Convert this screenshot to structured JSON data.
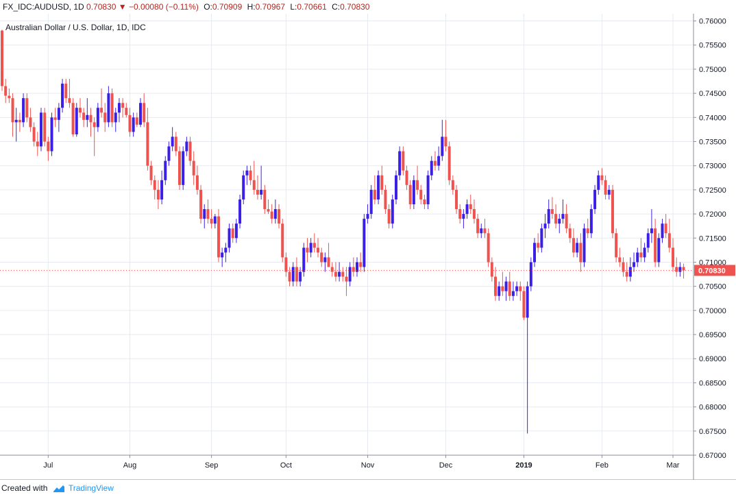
{
  "header": {
    "symbol": "FX_IDC:AUDUSD, 1D",
    "last": "0.70830",
    "change_arrow": "▼",
    "change": "−0.00080 (−0.11%)",
    "o_label": "O:",
    "o_value": "0.70909",
    "h_label": "H:",
    "h_value": "0.70967",
    "l_label": "L:",
    "l_value": "0.70661",
    "c_label": "C:",
    "c_value": "0.70830"
  },
  "footer": {
    "created_with": "Created with",
    "brand": "TradingView"
  },
  "colors": {
    "up": "#3a1fe6",
    "down": "#ef5350",
    "grid": "#e6eaf0",
    "axis": "#8a8e99",
    "price_label_bg": "#ef5350"
  },
  "chart_data": {
    "type": "candlestick",
    "title": "Australian Dollar / U.S. Dollar, 1D, IDC",
    "ylim": [
      0.67,
      0.7615
    ],
    "y_ticks": [
      "0.76000",
      "0.75500",
      "0.75000",
      "0.74500",
      "0.74000",
      "0.73500",
      "0.73000",
      "0.72500",
      "0.72000",
      "0.71500",
      "0.71000",
      "0.70500",
      "0.70000",
      "0.69500",
      "0.69000",
      "0.68500",
      "0.68000",
      "0.67500",
      "0.67000"
    ],
    "x_tick_labels": [
      {
        "label": "Jul",
        "bar": 13
      },
      {
        "label": "Aug",
        "bar": 36
      },
      {
        "label": "Sep",
        "bar": 59
      },
      {
        "label": "Oct",
        "bar": 80
      },
      {
        "label": "Nov",
        "bar": 103
      },
      {
        "label": "Dec",
        "bar": 125
      },
      {
        "label": "2019",
        "bar": 147
      },
      {
        "label": "Feb",
        "bar": 169
      },
      {
        "label": "Mar",
        "bar": 189
      }
    ],
    "last_price": "0.70830",
    "grid": true,
    "candles": [
      [
        0.758,
        0.7582,
        0.7455,
        0.7465
      ],
      [
        0.7465,
        0.748,
        0.743,
        0.7445
      ],
      [
        0.7445,
        0.746,
        0.743,
        0.744
      ],
      [
        0.744,
        0.745,
        0.736,
        0.739
      ],
      [
        0.739,
        0.742,
        0.735,
        0.7395
      ],
      [
        0.7395,
        0.741,
        0.737,
        0.739
      ],
      [
        0.739,
        0.745,
        0.738,
        0.744
      ],
      [
        0.744,
        0.745,
        0.739,
        0.74
      ],
      [
        0.74,
        0.742,
        0.737,
        0.738
      ],
      [
        0.738,
        0.739,
        0.734,
        0.735
      ],
      [
        0.735,
        0.737,
        0.732,
        0.734
      ],
      [
        0.734,
        0.742,
        0.733,
        0.741
      ],
      [
        0.741,
        0.742,
        0.734,
        0.735
      ],
      [
        0.735,
        0.736,
        0.731,
        0.733
      ],
      [
        0.733,
        0.741,
        0.732,
        0.74
      ],
      [
        0.74,
        0.742,
        0.738,
        0.7395
      ],
      [
        0.7395,
        0.743,
        0.737,
        0.742
      ],
      [
        0.742,
        0.748,
        0.741,
        0.747
      ],
      [
        0.747,
        0.748,
        0.743,
        0.744
      ],
      [
        0.744,
        0.748,
        0.742,
        0.743
      ],
      [
        0.743,
        0.744,
        0.736,
        0.7365
      ],
      [
        0.7365,
        0.743,
        0.736,
        0.742
      ],
      [
        0.742,
        0.744,
        0.74,
        0.741
      ],
      [
        0.741,
        0.742,
        0.738,
        0.7395
      ],
      [
        0.7395,
        0.744,
        0.738,
        0.7405
      ],
      [
        0.7405,
        0.742,
        0.736,
        0.739
      ],
      [
        0.739,
        0.74,
        0.732,
        0.738
      ],
      [
        0.738,
        0.743,
        0.737,
        0.742
      ],
      [
        0.742,
        0.746,
        0.74,
        0.741
      ],
      [
        0.741,
        0.743,
        0.737,
        0.739
      ],
      [
        0.739,
        0.7465,
        0.738,
        0.745
      ],
      [
        0.745,
        0.746,
        0.738,
        0.739
      ],
      [
        0.739,
        0.742,
        0.737,
        0.741
      ],
      [
        0.741,
        0.744,
        0.739,
        0.743
      ],
      [
        0.743,
        0.744,
        0.74,
        0.742
      ],
      [
        0.742,
        0.743,
        0.74,
        0.7405
      ],
      [
        0.7405,
        0.742,
        0.736,
        0.737
      ],
      [
        0.737,
        0.741,
        0.736,
        0.74
      ],
      [
        0.74,
        0.741,
        0.738,
        0.7385
      ],
      [
        0.7385,
        0.744,
        0.738,
        0.743
      ],
      [
        0.743,
        0.745,
        0.738,
        0.739
      ],
      [
        0.739,
        0.742,
        0.729,
        0.73
      ],
      [
        0.73,
        0.731,
        0.726,
        0.727
      ],
      [
        0.727,
        0.728,
        0.723,
        0.725
      ],
      [
        0.725,
        0.727,
        0.721,
        0.723
      ],
      [
        0.723,
        0.729,
        0.722,
        0.727
      ],
      [
        0.727,
        0.732,
        0.726,
        0.731
      ],
      [
        0.731,
        0.735,
        0.73,
        0.734
      ],
      [
        0.734,
        0.738,
        0.733,
        0.736
      ],
      [
        0.736,
        0.737,
        0.732,
        0.733
      ],
      [
        0.733,
        0.734,
        0.725,
        0.726
      ],
      [
        0.726,
        0.734,
        0.725,
        0.733
      ],
      [
        0.733,
        0.736,
        0.732,
        0.735
      ],
      [
        0.735,
        0.736,
        0.73,
        0.731
      ],
      [
        0.731,
        0.733,
        0.726,
        0.728
      ],
      [
        0.728,
        0.73,
        0.724,
        0.725
      ],
      [
        0.725,
        0.726,
        0.718,
        0.719
      ],
      [
        0.719,
        0.722,
        0.717,
        0.721
      ],
      [
        0.721,
        0.723,
        0.718,
        0.719
      ],
      [
        0.719,
        0.721,
        0.717,
        0.718
      ],
      [
        0.718,
        0.72,
        0.717,
        0.7195
      ],
      [
        0.7195,
        0.721,
        0.71,
        0.711
      ],
      [
        0.711,
        0.713,
        0.709,
        0.712
      ],
      [
        0.712,
        0.714,
        0.71,
        0.713
      ],
      [
        0.713,
        0.718,
        0.712,
        0.717
      ],
      [
        0.717,
        0.718,
        0.714,
        0.715
      ],
      [
        0.715,
        0.719,
        0.714,
        0.718
      ],
      [
        0.718,
        0.724,
        0.717,
        0.723
      ],
      [
        0.723,
        0.729,
        0.722,
        0.728
      ],
      [
        0.728,
        0.73,
        0.726,
        0.729
      ],
      [
        0.729,
        0.73,
        0.726,
        0.727
      ],
      [
        0.727,
        0.731,
        0.724,
        0.725
      ],
      [
        0.725,
        0.728,
        0.723,
        0.724
      ],
      [
        0.724,
        0.73,
        0.723,
        0.725
      ],
      [
        0.725,
        0.726,
        0.72,
        0.721
      ],
      [
        0.721,
        0.723,
        0.72,
        0.7205
      ],
      [
        0.7205,
        0.722,
        0.718,
        0.719
      ],
      [
        0.719,
        0.723,
        0.718,
        0.721
      ],
      [
        0.721,
        0.722,
        0.717,
        0.718
      ],
      [
        0.718,
        0.719,
        0.71,
        0.711
      ],
      [
        0.711,
        0.712,
        0.707,
        0.708
      ],
      [
        0.708,
        0.709,
        0.705,
        0.706
      ],
      [
        0.706,
        0.71,
        0.705,
        0.709
      ],
      [
        0.709,
        0.711,
        0.705,
        0.706
      ],
      [
        0.706,
        0.709,
        0.705,
        0.708
      ],
      [
        0.708,
        0.714,
        0.707,
        0.713
      ],
      [
        0.713,
        0.715,
        0.71,
        0.712
      ],
      [
        0.712,
        0.715,
        0.711,
        0.714
      ],
      [
        0.714,
        0.716,
        0.712,
        0.713
      ],
      [
        0.713,
        0.715,
        0.711,
        0.712
      ],
      [
        0.712,
        0.713,
        0.709,
        0.71
      ],
      [
        0.71,
        0.712,
        0.708,
        0.711
      ],
      [
        0.711,
        0.714,
        0.709,
        0.709
      ],
      [
        0.709,
        0.71,
        0.707,
        0.708
      ],
      [
        0.708,
        0.71,
        0.706,
        0.707
      ],
      [
        0.707,
        0.71,
        0.706,
        0.708
      ],
      [
        0.708,
        0.709,
        0.706,
        0.707
      ],
      [
        0.707,
        0.709,
        0.703,
        0.706
      ],
      [
        0.706,
        0.71,
        0.705,
        0.709
      ],
      [
        0.709,
        0.711,
        0.707,
        0.708
      ],
      [
        0.708,
        0.711,
        0.707,
        0.71
      ],
      [
        0.71,
        0.712,
        0.708,
        0.709
      ],
      [
        0.709,
        0.72,
        0.708,
        0.719
      ],
      [
        0.719,
        0.722,
        0.718,
        0.72
      ],
      [
        0.72,
        0.726,
        0.719,
        0.725
      ],
      [
        0.725,
        0.728,
        0.722,
        0.723
      ],
      [
        0.723,
        0.729,
        0.722,
        0.728
      ],
      [
        0.728,
        0.73,
        0.724,
        0.725
      ],
      [
        0.725,
        0.726,
        0.72,
        0.721
      ],
      [
        0.721,
        0.722,
        0.717,
        0.718
      ],
      [
        0.718,
        0.724,
        0.717,
        0.723
      ],
      [
        0.723,
        0.729,
        0.722,
        0.728
      ],
      [
        0.728,
        0.734,
        0.727,
        0.733
      ],
      [
        0.733,
        0.734,
        0.728,
        0.729
      ],
      [
        0.729,
        0.73,
        0.725,
        0.726
      ],
      [
        0.726,
        0.727,
        0.721,
        0.722
      ],
      [
        0.722,
        0.728,
        0.721,
        0.727
      ],
      [
        0.727,
        0.73,
        0.724,
        0.725
      ],
      [
        0.725,
        0.726,
        0.722,
        0.723
      ],
      [
        0.723,
        0.724,
        0.721,
        0.722
      ],
      [
        0.722,
        0.729,
        0.721,
        0.728
      ],
      [
        0.728,
        0.732,
        0.727,
        0.731
      ],
      [
        0.731,
        0.733,
        0.729,
        0.73
      ],
      [
        0.73,
        0.734,
        0.729,
        0.732
      ],
      [
        0.732,
        0.7395,
        0.731,
        0.736
      ],
      [
        0.736,
        0.7395,
        0.733,
        0.734
      ],
      [
        0.734,
        0.735,
        0.726,
        0.727
      ],
      [
        0.727,
        0.728,
        0.724,
        0.725
      ],
      [
        0.725,
        0.726,
        0.72,
        0.721
      ],
      [
        0.721,
        0.722,
        0.718,
        0.719
      ],
      [
        0.719,
        0.721,
        0.717,
        0.72
      ],
      [
        0.72,
        0.723,
        0.719,
        0.722
      ],
      [
        0.722,
        0.724,
        0.72,
        0.721
      ],
      [
        0.721,
        0.723,
        0.718,
        0.719
      ],
      [
        0.719,
        0.72,
        0.715,
        0.716
      ],
      [
        0.716,
        0.718,
        0.715,
        0.717
      ],
      [
        0.717,
        0.719,
        0.715,
        0.716
      ],
      [
        0.716,
        0.717,
        0.709,
        0.71
      ],
      [
        0.71,
        0.711,
        0.706,
        0.707
      ],
      [
        0.707,
        0.709,
        0.702,
        0.703
      ],
      [
        0.703,
        0.706,
        0.702,
        0.705
      ],
      [
        0.705,
        0.708,
        0.703,
        0.704
      ],
      [
        0.704,
        0.707,
        0.702,
        0.706
      ],
      [
        0.706,
        0.708,
        0.702,
        0.703
      ],
      [
        0.703,
        0.706,
        0.702,
        0.704
      ],
      [
        0.704,
        0.706,
        0.703,
        0.705
      ],
      [
        0.705,
        0.706,
        0.702,
        0.704
      ],
      [
        0.704,
        0.705,
        0.698,
        0.6985
      ],
      [
        0.6985,
        0.706,
        0.6745,
        0.705
      ],
      [
        0.705,
        0.711,
        0.704,
        0.71
      ],
      [
        0.71,
        0.715,
        0.709,
        0.714
      ],
      [
        0.714,
        0.716,
        0.712,
        0.713
      ],
      [
        0.713,
        0.718,
        0.712,
        0.717
      ],
      [
        0.717,
        0.72,
        0.715,
        0.718
      ],
      [
        0.718,
        0.723,
        0.717,
        0.721
      ],
      [
        0.721,
        0.7235,
        0.719,
        0.72
      ],
      [
        0.72,
        0.722,
        0.717,
        0.718
      ],
      [
        0.718,
        0.72,
        0.716,
        0.719
      ],
      [
        0.719,
        0.723,
        0.718,
        0.72
      ],
      [
        0.72,
        0.722,
        0.716,
        0.717
      ],
      [
        0.717,
        0.718,
        0.714,
        0.715
      ],
      [
        0.715,
        0.717,
        0.711,
        0.712
      ],
      [
        0.712,
        0.715,
        0.711,
        0.714
      ],
      [
        0.714,
        0.716,
        0.708,
        0.71
      ],
      [
        0.71,
        0.718,
        0.709,
        0.717
      ],
      [
        0.717,
        0.719,
        0.715,
        0.716
      ],
      [
        0.716,
        0.722,
        0.715,
        0.721
      ],
      [
        0.721,
        0.726,
        0.72,
        0.725
      ],
      [
        0.725,
        0.729,
        0.724,
        0.728
      ],
      [
        0.728,
        0.7295,
        0.726,
        0.727
      ],
      [
        0.727,
        0.728,
        0.723,
        0.724
      ],
      [
        0.724,
        0.726,
        0.723,
        0.725
      ],
      [
        0.725,
        0.726,
        0.715,
        0.716
      ],
      [
        0.716,
        0.717,
        0.71,
        0.711
      ],
      [
        0.711,
        0.713,
        0.709,
        0.71
      ],
      [
        0.71,
        0.711,
        0.707,
        0.708
      ],
      [
        0.708,
        0.71,
        0.706,
        0.707
      ],
      [
        0.707,
        0.711,
        0.706,
        0.709
      ],
      [
        0.709,
        0.712,
        0.708,
        0.71
      ],
      [
        0.71,
        0.713,
        0.709,
        0.712
      ],
      [
        0.712,
        0.715,
        0.71,
        0.711
      ],
      [
        0.711,
        0.714,
        0.71,
        0.713
      ],
      [
        0.713,
        0.717,
        0.712,
        0.716
      ],
      [
        0.716,
        0.721,
        0.714,
        0.717
      ],
      [
        0.717,
        0.719,
        0.709,
        0.71
      ],
      [
        0.71,
        0.716,
        0.709,
        0.715
      ],
      [
        0.715,
        0.719,
        0.714,
        0.718
      ],
      [
        0.718,
        0.72,
        0.715,
        0.716
      ],
      [
        0.716,
        0.719,
        0.712,
        0.713
      ],
      [
        0.713,
        0.715,
        0.708,
        0.709
      ],
      [
        0.709,
        0.711,
        0.707,
        0.708
      ],
      [
        0.708,
        0.71,
        0.707,
        0.709
      ],
      [
        0.709,
        0.7097,
        0.7066,
        0.7083
      ]
    ]
  }
}
